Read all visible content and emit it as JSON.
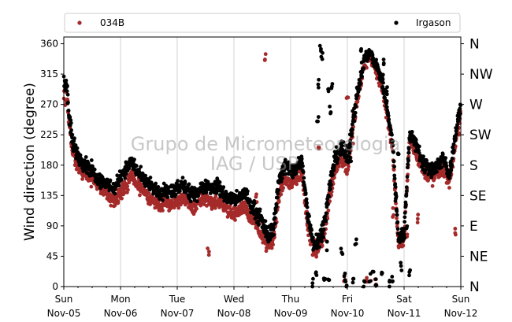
{
  "chart_data": {
    "type": "scatter",
    "ylabel": "Wind direction (degree)",
    "ylim": [
      0,
      370
    ],
    "yticks": [
      0,
      45,
      90,
      135,
      180,
      225,
      270,
      315,
      360
    ],
    "compass_labels": [
      "N",
      "NE",
      "E",
      "SE",
      "S",
      "SW",
      "W",
      "NW",
      "N"
    ],
    "xlim": [
      0,
      7
    ],
    "xticks": [
      {
        "day": 0,
        "weekday": "Sun",
        "date": "Nov-05"
      },
      {
        "day": 1,
        "weekday": "Mon",
        "date": "Nov-06"
      },
      {
        "day": 2,
        "weekday": "Tue",
        "date": "Nov-07"
      },
      {
        "day": 3,
        "weekday": "Wed",
        "date": "Nov-08"
      },
      {
        "day": 4,
        "weekday": "Thu",
        "date": "Nov-09"
      },
      {
        "day": 5,
        "weekday": "Fri",
        "date": "Nov-10"
      },
      {
        "day": 6,
        "weekday": "Sat",
        "date": "Nov-11"
      },
      {
        "day": 7,
        "weekday": "Sun",
        "date": "Nov-12"
      }
    ],
    "grid": "vertical",
    "legend_position": "top",
    "watermark": [
      "Grupo de Micrometeorologia",
      "IAG / USP"
    ],
    "series": [
      {
        "name": "034B",
        "color": "#a52a2a",
        "x": [
          0.0,
          0.05,
          0.1,
          0.15,
          0.2,
          0.3,
          0.4,
          0.5,
          0.6,
          0.7,
          0.8,
          0.9,
          1.0,
          1.1,
          1.2,
          1.3,
          1.4,
          1.5,
          1.6,
          1.7,
          1.8,
          1.9,
          2.0,
          2.1,
          2.2,
          2.3,
          2.4,
          2.5,
          2.6,
          2.7,
          2.8,
          2.9,
          3.0,
          3.1,
          3.2,
          3.3,
          3.4,
          3.5,
          3.6,
          3.7,
          3.8,
          3.9,
          4.0,
          4.1,
          4.2,
          4.3,
          4.4,
          4.5,
          4.6,
          4.7,
          4.8,
          4.9,
          5.0,
          5.05,
          5.1,
          5.2,
          5.3,
          5.4,
          5.5,
          5.6,
          5.7,
          5.8,
          5.9,
          6.0,
          6.1,
          6.2,
          6.3,
          6.4,
          6.5,
          6.6,
          6.7,
          6.8,
          6.9,
          7.0
        ],
        "y": [
          300,
          285,
          240,
          205,
          195,
          175,
          168,
          160,
          150,
          145,
          135,
          125,
          140,
          150,
          165,
          150,
          140,
          130,
          125,
          115,
          125,
          120,
          125,
          130,
          120,
          115,
          125,
          130,
          120,
          125,
          120,
          110,
          105,
          110,
          120,
          100,
          90,
          80,
          60,
          70,
          140,
          160,
          150,
          160,
          170,
          95,
          55,
          60,
          80,
          140,
          180,
          190,
          175,
          200,
          240,
          290,
          330,
          345,
          320,
          300,
          255,
          200,
          60,
          70,
          220,
          200,
          180,
          165,
          160,
          170,
          175,
          155,
          210,
          260
        ],
        "y_lo": [
          255,
          240,
          200,
          170,
          160,
          145,
          140,
          135,
          125,
          120,
          110,
          105,
          115,
          125,
          140,
          125,
          115,
          110,
          105,
          100,
          105,
          100,
          105,
          110,
          100,
          95,
          105,
          110,
          100,
          105,
          100,
          95,
          85,
          90,
          95,
          75,
          60,
          45,
          30,
          40,
          110,
          130,
          120,
          130,
          140,
          60,
          25,
          30,
          50,
          110,
          150,
          160,
          145,
          165,
          200,
          255,
          300,
          320,
          295,
          270,
          230,
          175,
          40,
          45,
          190,
          175,
          155,
          140,
          135,
          145,
          150,
          130,
          180,
          225
        ],
        "y_hi": [
          315,
          305,
          275,
          230,
          220,
          200,
          195,
          185,
          175,
          170,
          160,
          150,
          165,
          175,
          190,
          175,
          165,
          155,
          150,
          140,
          150,
          145,
          150,
          155,
          145,
          140,
          150,
          155,
          145,
          150,
          145,
          135,
          130,
          135,
          145,
          125,
          120,
          105,
          90,
          100,
          170,
          190,
          180,
          190,
          200,
          125,
          85,
          90,
          110,
          170,
          210,
          220,
          205,
          235,
          275,
          320,
          355,
          358,
          345,
          330,
          285,
          225,
          85,
          95,
          250,
          225,
          205,
          190,
          185,
          195,
          200,
          180,
          240,
          290
        ]
      },
      {
        "name": "Irgason",
        "color": "#000000",
        "x": [
          0.0,
          0.05,
          0.1,
          0.15,
          0.2,
          0.3,
          0.4,
          0.5,
          0.6,
          0.7,
          0.8,
          0.9,
          1.0,
          1.1,
          1.2,
          1.3,
          1.4,
          1.5,
          1.6,
          1.7,
          1.8,
          1.9,
          2.0,
          2.1,
          2.2,
          2.3,
          2.4,
          2.5,
          2.6,
          2.7,
          2.8,
          2.9,
          3.0,
          3.1,
          3.2,
          3.3,
          3.4,
          3.5,
          3.6,
          3.7,
          3.8,
          3.9,
          4.0,
          4.1,
          4.2,
          4.3,
          4.4,
          4.5,
          4.6,
          4.7,
          4.8,
          4.9,
          5.0,
          5.05,
          5.1,
          5.2,
          5.3,
          5.4,
          5.5,
          5.6,
          5.7,
          5.8,
          5.9,
          6.0,
          6.1,
          6.2,
          6.3,
          6.4,
          6.5,
          6.6,
          6.7,
          6.8,
          6.9,
          7.0
        ],
        "y": [
          320,
          300,
          250,
          215,
          205,
          190,
          180,
          170,
          160,
          155,
          150,
          145,
          165,
          175,
          185,
          170,
          160,
          150,
          145,
          135,
          145,
          140,
          145,
          150,
          140,
          135,
          145,
          150,
          145,
          150,
          140,
          130,
          130,
          130,
          140,
          120,
          110,
          95,
          75,
          90,
          160,
          180,
          170,
          175,
          185,
          110,
          65,
          70,
          95,
          155,
          195,
          205,
          190,
          215,
          250,
          295,
          340,
          350,
          330,
          310,
          265,
          210,
          70,
          80,
          230,
          210,
          190,
          175,
          170,
          180,
          185,
          165,
          220,
          270
        ],
        "y_lo": [
          275,
          255,
          210,
          180,
          170,
          160,
          150,
          145,
          135,
          130,
          125,
          120,
          140,
          150,
          160,
          145,
          135,
          125,
          120,
          110,
          120,
          115,
          120,
          125,
          115,
          110,
          120,
          125,
          120,
          125,
          115,
          105,
          105,
          105,
          115,
          95,
          80,
          65,
          45,
          55,
          130,
          150,
          140,
          145,
          155,
          75,
          35,
          40,
          65,
          125,
          165,
          175,
          160,
          180,
          215,
          265,
          315,
          330,
          305,
          280,
          240,
          185,
          50,
          55,
          200,
          185,
          165,
          150,
          145,
          155,
          160,
          140,
          190,
          240
        ],
        "y_hi": [
          345,
          330,
          285,
          245,
          235,
          215,
          210,
          200,
          185,
          180,
          175,
          170,
          190,
          200,
          210,
          195,
          185,
          175,
          170,
          160,
          170,
          165,
          170,
          175,
          165,
          160,
          170,
          175,
          170,
          175,
          165,
          155,
          155,
          155,
          165,
          145,
          140,
          125,
          105,
          120,
          190,
          210,
          200,
          205,
          215,
          140,
          95,
          100,
          125,
          185,
          225,
          235,
          220,
          250,
          290,
          330,
          358,
          360,
          355,
          340,
          295,
          240,
          95,
          105,
          260,
          240,
          220,
          205,
          200,
          210,
          215,
          195,
          250,
          300
        ]
      }
    ],
    "excursions": [
      {
        "series": "Irgason",
        "points": [
          [
            4.38,
            5
          ],
          [
            4.45,
            20
          ],
          [
            4.48,
            250
          ],
          [
            4.5,
            300
          ],
          [
            4.52,
            350
          ],
          [
            4.55,
            340
          ],
          [
            4.6,
            15
          ],
          [
            4.65,
            60
          ],
          [
            4.66,
            290
          ],
          [
            4.67,
            8
          ],
          [
            4.7,
            260
          ],
          [
            4.72,
            300
          ],
          [
            4.9,
            50
          ],
          [
            4.95,
            15
          ],
          [
            4.98,
            3
          ],
          [
            5.05,
            190
          ],
          [
            5.08,
            230
          ],
          [
            5.1,
            10
          ],
          [
            5.15,
            65
          ],
          [
            5.25,
            350
          ],
          [
            5.3,
            5
          ],
          [
            5.4,
            12
          ],
          [
            5.45,
            25
          ],
          [
            5.5,
            8
          ],
          [
            5.6,
            15
          ],
          [
            5.62,
            310
          ],
          [
            5.65,
            330
          ],
          [
            5.7,
            290
          ],
          [
            5.75,
            5
          ],
          [
            5.8,
            12
          ],
          [
            5.85,
            130
          ],
          [
            5.9,
            200
          ],
          [
            5.95,
            30
          ],
          [
            6.0,
            70
          ],
          [
            6.05,
            90
          ],
          [
            6.1,
            20
          ]
        ]
      },
      {
        "series": "034B",
        "points": [
          [
            2.55,
            50
          ],
          [
            3.55,
            342
          ],
          [
            3.4,
            130
          ],
          [
            4.45,
            45
          ],
          [
            4.5,
            200
          ],
          [
            4.95,
            10
          ],
          [
            5.0,
            280
          ],
          [
            5.1,
            215
          ],
          [
            5.35,
            10
          ],
          [
            5.5,
            5
          ],
          [
            5.8,
            110
          ],
          [
            6.05,
            80
          ],
          [
            6.25,
            100
          ],
          [
            6.9,
            82
          ],
          [
            6.95,
            230
          ]
        ]
      }
    ]
  }
}
